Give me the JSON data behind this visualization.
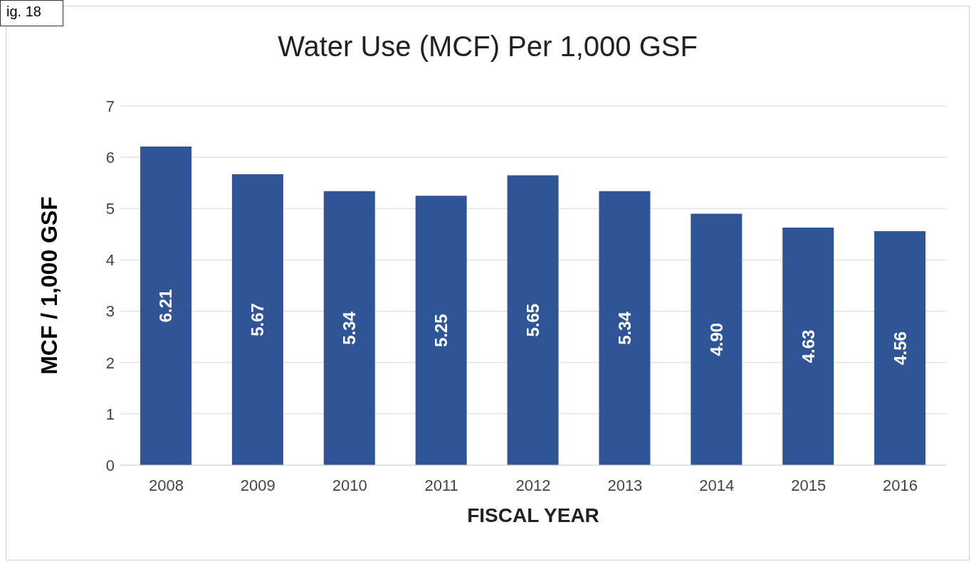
{
  "chart_data": {
    "type": "bar",
    "title": "Water Use (MCF) Per 1,000 GSF",
    "xlabel": "FISCAL YEAR",
    "ylabel": "MCF / 1,000 GSF",
    "categories": [
      "2008",
      "2009",
      "2010",
      "2011",
      "2012",
      "2013",
      "2014",
      "2015",
      "2016"
    ],
    "values": [
      6.21,
      5.67,
      5.34,
      5.25,
      5.65,
      5.34,
      4.9,
      4.63,
      4.56
    ],
    "value_labels": [
      "6.21",
      "5.67",
      "5.34",
      "5.25",
      "5.65",
      "5.34",
      "4.90",
      "4.63",
      "4.56"
    ],
    "color": "#2f5597",
    "ylim": [
      0,
      7
    ],
    "yticks": [
      0,
      1,
      2,
      3,
      4,
      5,
      6,
      7
    ],
    "grid": "y",
    "annotations": [
      "ig. 18"
    ]
  }
}
